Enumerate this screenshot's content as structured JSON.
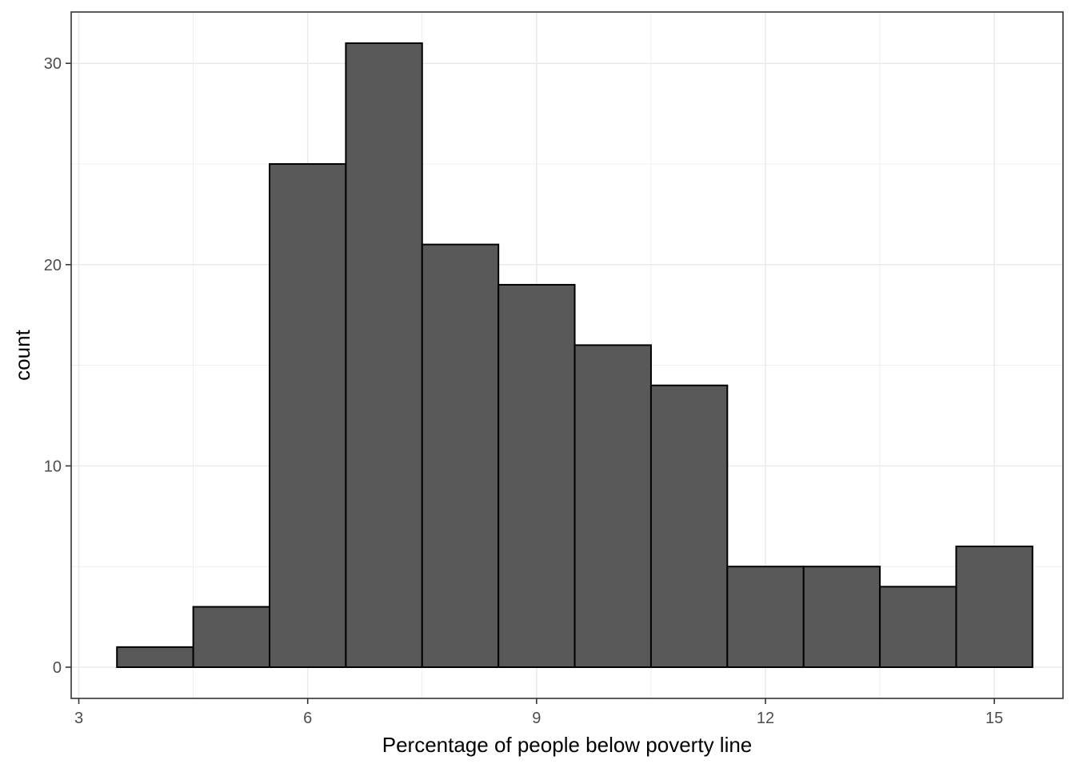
{
  "chart_data": {
    "type": "bar",
    "subtype": "histogram",
    "title": "",
    "xlabel": "Percentage of people below poverty line",
    "ylabel": "count",
    "xlim": [
      2.9,
      15.9
    ],
    "ylim": [
      -1.55,
      32.55
    ],
    "x_ticks": [
      3,
      6,
      9,
      12,
      15
    ],
    "x_tick_labels": [
      "3",
      "6",
      "9",
      "12",
      "15"
    ],
    "y_ticks": [
      0,
      10,
      20,
      30
    ],
    "y_tick_labels": [
      "0",
      "10",
      "20",
      "30"
    ],
    "grid": true,
    "bin_width": 1,
    "bins": [
      {
        "x_start": 3.5,
        "x_end": 4.5,
        "count": 1
      },
      {
        "x_start": 4.5,
        "x_end": 5.5,
        "count": 3
      },
      {
        "x_start": 5.5,
        "x_end": 6.5,
        "count": 25
      },
      {
        "x_start": 6.5,
        "x_end": 7.5,
        "count": 31
      },
      {
        "x_start": 7.5,
        "x_end": 8.5,
        "count": 21
      },
      {
        "x_start": 8.5,
        "x_end": 9.5,
        "count": 19
      },
      {
        "x_start": 9.5,
        "x_end": 10.5,
        "count": 16
      },
      {
        "x_start": 10.5,
        "x_end": 11.5,
        "count": 14
      },
      {
        "x_start": 11.5,
        "x_end": 12.5,
        "count": 5
      },
      {
        "x_start": 12.5,
        "x_end": 13.5,
        "count": 5
      },
      {
        "x_start": 13.5,
        "x_end": 14.5,
        "count": 4
      },
      {
        "x_start": 14.5,
        "x_end": 15.5,
        "count": 6
      }
    ],
    "colors": {
      "bar_fill": "#595959",
      "bar_stroke": "#000000",
      "panel_border": "#333333",
      "grid": "#ebebeb",
      "tick_label": "#4d4d4d"
    }
  }
}
